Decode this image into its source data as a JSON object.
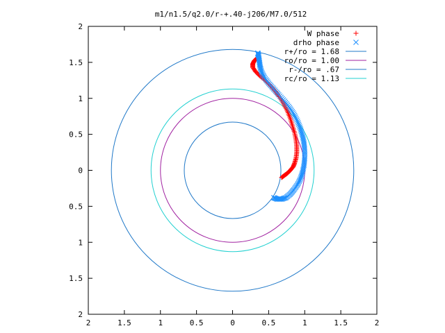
{
  "chart_data": {
    "type": "scatter",
    "title": "m1/n1.5/q2.0/r-+.40-j206/M7.0/512",
    "xlabel": "",
    "ylabel": "",
    "xlim": [
      -2,
      2
    ],
    "ylim": [
      -2,
      2
    ],
    "x_ticks": [
      -2,
      -1.5,
      -1,
      -0.5,
      0,
      0.5,
      1,
      1.5,
      2
    ],
    "y_ticks": [
      -2,
      -1.5,
      -1,
      -0.5,
      0,
      0.5,
      1,
      1.5,
      2
    ],
    "x_tick_labels": [
      "2",
      "1.5",
      "1",
      "0.5",
      "0",
      "0.5",
      "1",
      "1.5",
      "2"
    ],
    "y_tick_labels": [
      "2",
      "1.5",
      "1",
      "0.5",
      "0",
      "0.5",
      "1",
      "1.5",
      "2"
    ],
    "grid": false,
    "legend_position": "top-right",
    "series": [
      {
        "name": "W phase",
        "kind": "points",
        "marker": "plus",
        "color": "#ff0000",
        "points": [
          [
            0.68,
            -0.1
          ],
          [
            0.72,
            -0.07
          ],
          [
            0.76,
            -0.04
          ],
          [
            0.8,
            0.0
          ],
          [
            0.84,
            0.05
          ],
          [
            0.86,
            0.1
          ],
          [
            0.88,
            0.17
          ],
          [
            0.89,
            0.25
          ],
          [
            0.89,
            0.33
          ],
          [
            0.88,
            0.42
          ],
          [
            0.86,
            0.52
          ],
          [
            0.83,
            0.62
          ],
          [
            0.8,
            0.72
          ],
          [
            0.76,
            0.82
          ],
          [
            0.71,
            0.92
          ],
          [
            0.65,
            1.02
          ],
          [
            0.59,
            1.1
          ],
          [
            0.52,
            1.18
          ],
          [
            0.45,
            1.25
          ],
          [
            0.38,
            1.31
          ],
          [
            0.32,
            1.37
          ],
          [
            0.28,
            1.43
          ],
          [
            0.28,
            1.48
          ],
          [
            0.3,
            1.52
          ],
          [
            0.33,
            1.55
          ]
        ]
      },
      {
        "name": "drho phase",
        "kind": "points",
        "marker": "cross",
        "color": "#1e90ff",
        "points": [
          [
            0.57,
            -0.38
          ],
          [
            0.62,
            -0.4
          ],
          [
            0.68,
            -0.4
          ],
          [
            0.74,
            -0.38
          ],
          [
            0.8,
            -0.33
          ],
          [
            0.85,
            -0.27
          ],
          [
            0.9,
            -0.2
          ],
          [
            0.94,
            -0.12
          ],
          [
            0.97,
            -0.03
          ],
          [
            0.99,
            0.07
          ],
          [
            1.0,
            0.17
          ],
          [
            1.0,
            0.28
          ],
          [
            0.99,
            0.38
          ],
          [
            0.97,
            0.48
          ],
          [
            0.94,
            0.58
          ],
          [
            0.9,
            0.68
          ],
          [
            0.85,
            0.78
          ],
          [
            0.79,
            0.87
          ],
          [
            0.72,
            0.96
          ],
          [
            0.64,
            1.05
          ],
          [
            0.57,
            1.13
          ],
          [
            0.5,
            1.21
          ],
          [
            0.44,
            1.29
          ],
          [
            0.4,
            1.37
          ],
          [
            0.38,
            1.45
          ],
          [
            0.37,
            1.52
          ],
          [
            0.36,
            1.59
          ],
          [
            0.35,
            1.63
          ]
        ]
      },
      {
        "name": "r+/ro = 1.68",
        "kind": "circle",
        "radius": 1.68,
        "color": "#1f78c8"
      },
      {
        "name": "ro/ro = 1.00",
        "kind": "circle",
        "radius": 1.0,
        "color": "#a020a0"
      },
      {
        "name": "r-/ro = .67",
        "kind": "circle",
        "radius": 0.67,
        "color": "#1f78c8"
      },
      {
        "name": "rc/ro = 1.13",
        "kind": "circle",
        "radius": 1.13,
        "color": "#20d0d0"
      }
    ]
  }
}
